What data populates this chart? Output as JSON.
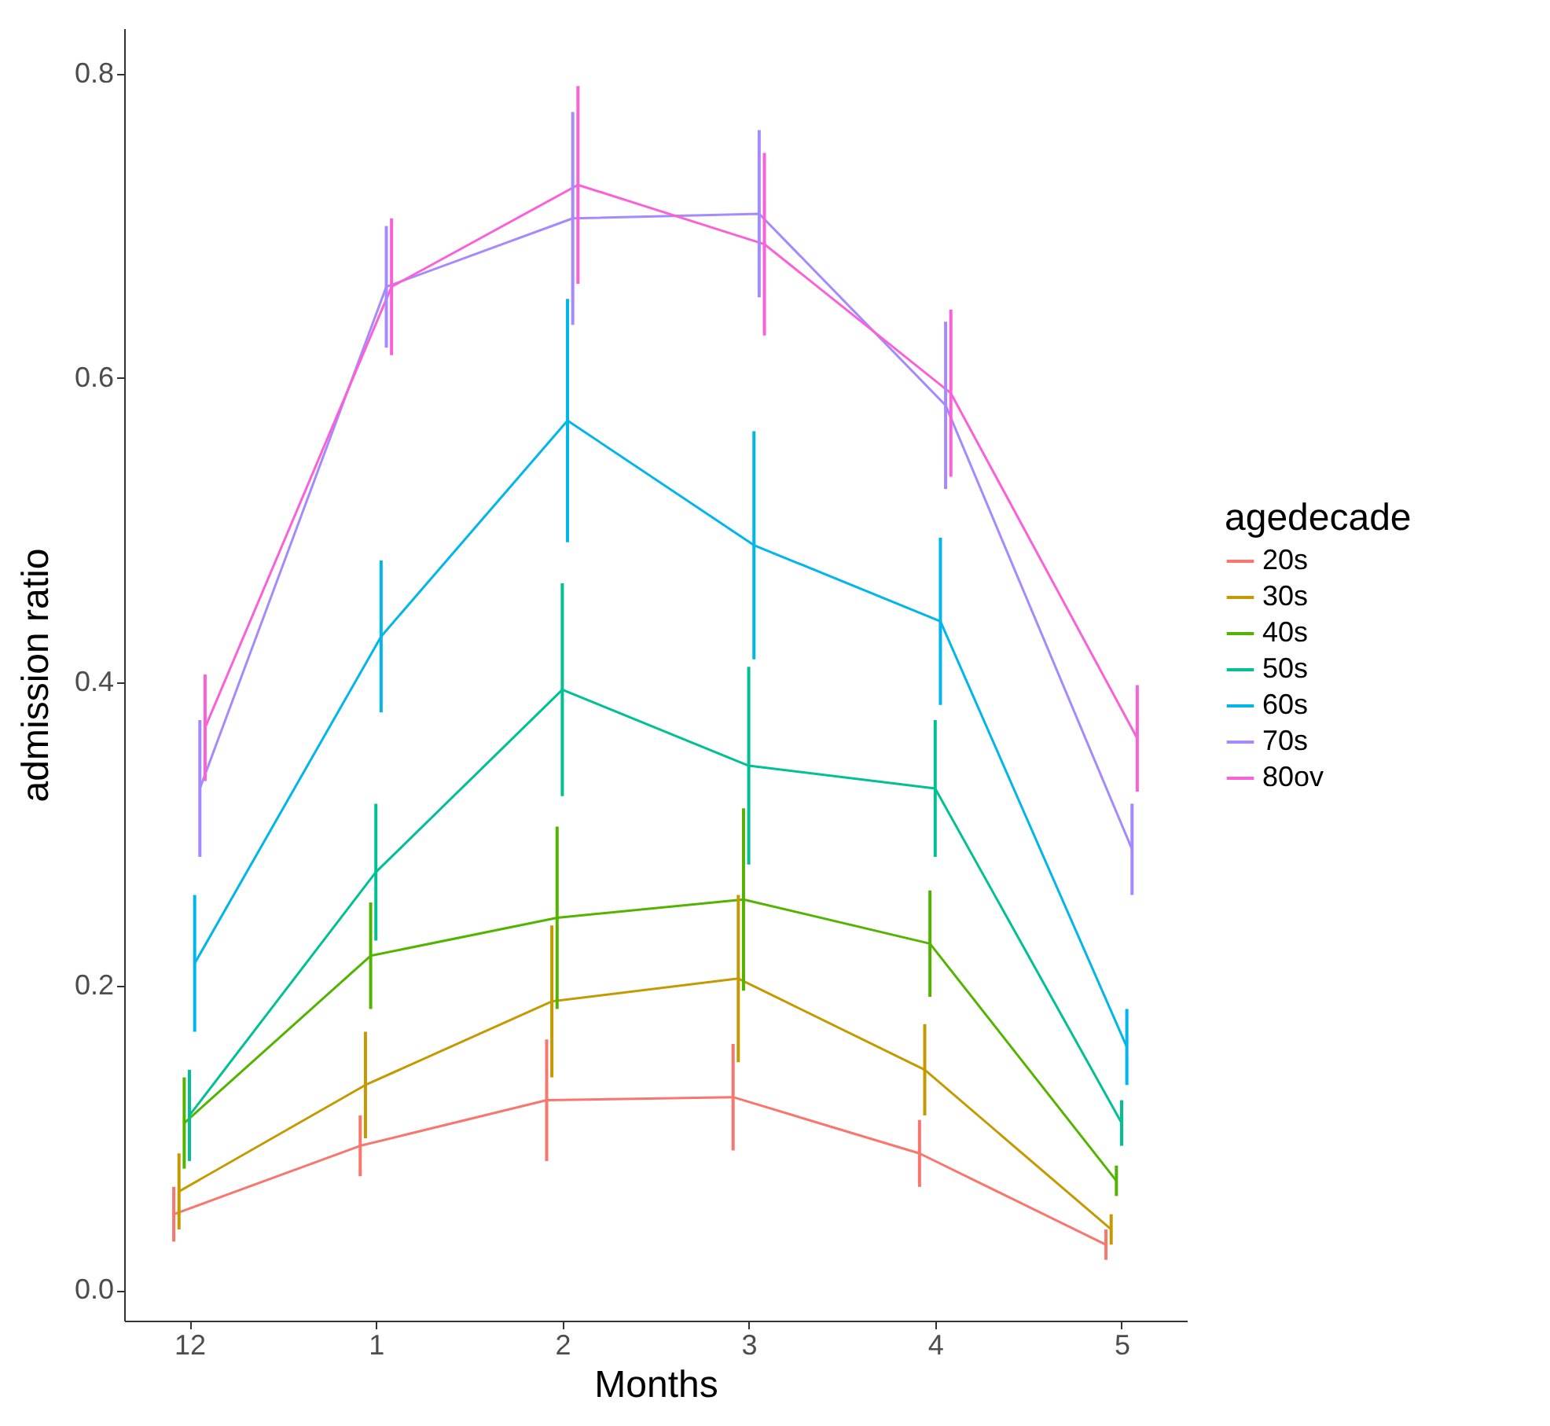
{
  "chart_data": {
    "type": "line",
    "xlabel": "Months",
    "ylabel": "admission ratio",
    "legend_title": "agedecade",
    "categories": [
      "12",
      "1",
      "2",
      "3",
      "4",
      "5"
    ],
    "series": [
      {
        "name": "20s",
        "color": "#f8766d",
        "values": [
          0.05,
          0.095,
          0.125,
          0.127,
          0.09,
          0.03
        ],
        "errors": [
          0.018,
          0.02,
          0.04,
          0.035,
          0.022,
          0.01
        ]
      },
      {
        "name": "30s",
        "color": "#c49a00",
        "values": [
          0.065,
          0.135,
          0.19,
          0.205,
          0.145,
          0.04
        ],
        "errors": [
          0.025,
          0.035,
          0.05,
          0.055,
          0.03,
          0.01
        ]
      },
      {
        "name": "40s",
        "color": "#53b400",
        "values": [
          0.11,
          0.22,
          0.245,
          0.257,
          0.228,
          0.072
        ],
        "errors": [
          0.03,
          0.035,
          0.06,
          0.06,
          0.035,
          0.01
        ]
      },
      {
        "name": "50s",
        "color": "#00c094",
        "values": [
          0.115,
          0.275,
          0.395,
          0.345,
          0.33,
          0.11
        ],
        "errors": [
          0.03,
          0.045,
          0.07,
          0.065,
          0.045,
          0.015
        ]
      },
      {
        "name": "60s",
        "color": "#00b6eb",
        "values": [
          0.215,
          0.43,
          0.572,
          0.49,
          0.44,
          0.16
        ],
        "errors": [
          0.045,
          0.05,
          0.08,
          0.075,
          0.055,
          0.025
        ]
      },
      {
        "name": "70s",
        "color": "#a58aff",
        "values": [
          0.33,
          0.66,
          0.705,
          0.708,
          0.582,
          0.29
        ],
        "errors": [
          0.045,
          0.04,
          0.07,
          0.055,
          0.055,
          0.03
        ]
      },
      {
        "name": "80ov",
        "color": "#fb61d7",
        "values": [
          0.37,
          0.66,
          0.727,
          0.688,
          0.59,
          0.363
        ],
        "errors": [
          0.035,
          0.045,
          0.065,
          0.06,
          0.055,
          0.035
        ]
      }
    ],
    "ylim": [
      -0.02,
      0.83
    ],
    "yticks": [
      {
        "value": 0,
        "label": "0.0"
      },
      {
        "value": 0.2,
        "label": "0.2"
      },
      {
        "value": 0.4,
        "label": "0.4"
      },
      {
        "value": 0.6,
        "label": "0.6"
      },
      {
        "value": 0.8,
        "label": "0.8"
      }
    ],
    "grid": false,
    "legend": "right",
    "marker": "none",
    "line_style": "solid"
  }
}
